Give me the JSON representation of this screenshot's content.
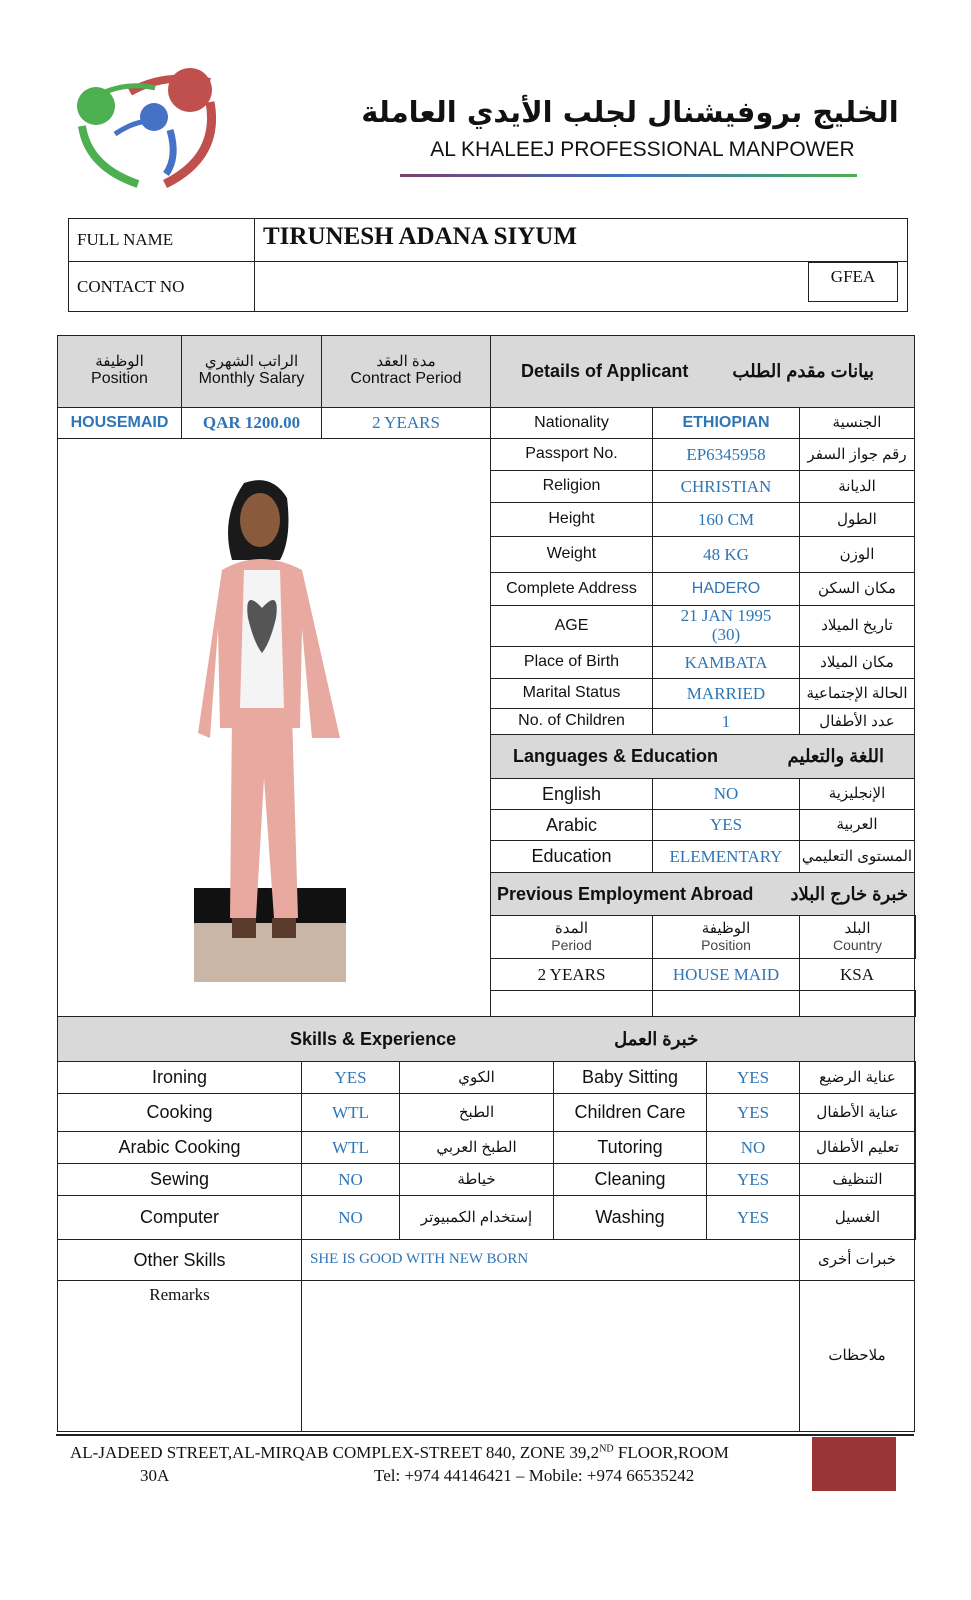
{
  "header": {
    "arabic_name": "الخليج بروفيشنال لجلب الأيدي العاملة",
    "english_name": "AL KHALEEJ PROFESSIONAL MANPOWER",
    "logo_colors": [
      "#4caf50",
      "#4472c4",
      "#c0504d"
    ]
  },
  "applicant": {
    "full_name_label": "FULL NAME",
    "full_name": "TIRUNESH ADANA SIYUM",
    "contact_label": "CONTACT NO",
    "contact_value": "",
    "code": "GFEA"
  },
  "job": {
    "position_ar": "الوظيفة",
    "position_en": "Position",
    "salary_ar": "الراتب الشهري",
    "salary_en": "Monthly Salary",
    "contract_ar": "مدة العقد",
    "contract_en": "Contract Period",
    "position": "HOUSEMAID",
    "salary": "QAR 1200.00",
    "contract": "2 YEARS"
  },
  "details": {
    "title_en": "Details of Applicant",
    "title_ar": "بيانات مقدم الطلب",
    "rows": [
      {
        "label": "Nationality",
        "value": "ETHIOPIAN",
        "ar": "الجنسية"
      },
      {
        "label": "Passport No.",
        "value": "EP6345958",
        "ar": "رقم جواز السفر"
      },
      {
        "label": "Religion",
        "value": "CHRISTIAN",
        "ar": "الديانة"
      },
      {
        "label": "Height",
        "value": "160 CM",
        "ar": "الطول"
      },
      {
        "label": "Weight",
        "value": "48 KG",
        "ar": "الوزن"
      },
      {
        "label": "Complete Address",
        "value": "HADERO",
        "ar": "مكان السكن"
      },
      {
        "label": "AGE",
        "value": "21 JAN 1995 (30)",
        "ar": "تاريخ الميلاد"
      },
      {
        "label": "Place of Birth",
        "value": "KAMBATA",
        "ar": "مكان الميلاد"
      },
      {
        "label": "Marital Status",
        "value": "MARRIED",
        "ar": "الحالة الإجتماعية"
      },
      {
        "label": "No. of Children",
        "value": "1",
        "ar": "عدد الأطفال"
      }
    ]
  },
  "languages": {
    "title_en": "Languages & Education",
    "title_ar": "اللغة والتعليم",
    "rows": [
      {
        "label": "English",
        "value": "NO",
        "ar": "الإنجليزية"
      },
      {
        "label": "Arabic",
        "value": "YES",
        "ar": "العربية"
      },
      {
        "label": "Education",
        "value": "ELEMENTARY",
        "ar": "المستوى التعليمي"
      }
    ]
  },
  "previous": {
    "title_en": "Previous Employment Abroad",
    "title_ar": "خبرة خارج البلاد",
    "headers": [
      {
        "ar": "المدة",
        "en": "Period"
      },
      {
        "ar": "الوظيفة",
        "en": "Position"
      },
      {
        "ar": "البلد",
        "en": "Country"
      }
    ],
    "rows": [
      {
        "period": "2 YEARS",
        "position": "HOUSE MAID",
        "country": "KSA"
      }
    ]
  },
  "skills": {
    "title_en": "Skills & Experience",
    "title_ar": "خبرة العمل",
    "rows": [
      {
        "l_label": "Ironing",
        "l_value": "YES",
        "l_ar": "الكوي",
        "r_label": "Baby Sitting",
        "r_value": "YES",
        "r_ar": "عناية الرضيع"
      },
      {
        "l_label": "Cooking",
        "l_value": "WTL",
        "l_ar": "الطبخ",
        "r_label": "Children Care",
        "r_value": "YES",
        "r_ar": "عناية الأطفال"
      },
      {
        "l_label": "Arabic Cooking",
        "l_value": "WTL",
        "l_ar": "الطبخ العربي",
        "r_label": "Tutoring",
        "r_value": "NO",
        "r_ar": "تعليم الأطفال"
      },
      {
        "l_label": "Sewing",
        "l_value": "NO",
        "l_ar": "خياطة",
        "r_label": "Cleaning",
        "r_value": "YES",
        "r_ar": "التنظيف"
      },
      {
        "l_label": "Computer",
        "l_value": "NO",
        "l_ar": "إستخدام الكمبيوتر",
        "r_label": "Washing",
        "r_value": "YES",
        "r_ar": "الغسيل"
      }
    ]
  },
  "other_skills": {
    "label": "Other Skills",
    "value": "SHE IS GOOD WITH NEW BORN",
    "ar": "خبرات أخرى"
  },
  "remarks": {
    "label": "Remarks",
    "value": "",
    "ar": "ملاحظات"
  },
  "footer": {
    "line1_a": "AL-JADEED STREET,AL-MIRQAB COMPLEX-STREET 840, ZONE 39,2",
    "line1_sup": "ND",
    "line1_b": " FLOOR,ROOM",
    "line2_a": "30A",
    "line2_b": "Tel: +974 44146421 – Mobile: +974 66535242",
    "accent": "#9b3535"
  }
}
